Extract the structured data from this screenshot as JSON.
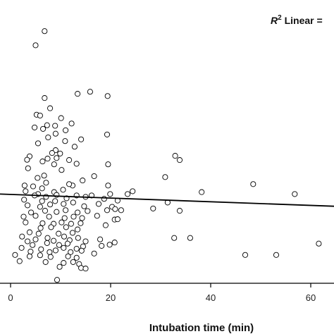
{
  "chart_data": {
    "type": "scatter",
    "xlabel": "Intubation time (min)",
    "ylabel": "",
    "annotation": {
      "r2_prefix": "R",
      "r2_sup": "2",
      "r2_rest": " Linear ="
    },
    "xlim": [
      -2,
      63
    ],
    "ylim": [
      0,
      100
    ],
    "x_ticks": [
      0,
      20,
      40,
      60
    ],
    "x_tick_labels": [
      "0",
      "20",
      "40",
      "60"
    ],
    "grid": false,
    "marker": "open-circle",
    "fit_line": {
      "x": [
        -2,
        63
      ],
      "y": [
        31.5,
        27.2
      ]
    },
    "points": [
      [
        6.8,
        89.0
      ],
      [
        5.0,
        84.0
      ],
      [
        15.9,
        67.6
      ],
      [
        13.4,
        66.9
      ],
      [
        6.8,
        65.4
      ],
      [
        19.4,
        66.1
      ],
      [
        7.9,
        61.8
      ],
      [
        5.2,
        59.5
      ],
      [
        5.9,
        59.2
      ],
      [
        10.1,
        58.3
      ],
      [
        12.2,
        56.4
      ],
      [
        7.3,
        55.8
      ],
      [
        8.9,
        55.6
      ],
      [
        4.8,
        55.0
      ],
      [
        6.5,
        54.5
      ],
      [
        11.0,
        54.0
      ],
      [
        19.3,
        52.5
      ],
      [
        9.0,
        52.8
      ],
      [
        7.5,
        51.5
      ],
      [
        14.1,
        50.8
      ],
      [
        10.9,
        50.2
      ],
      [
        5.5,
        49.4
      ],
      [
        12.8,
        48.2
      ],
      [
        9.0,
        47.0
      ],
      [
        8.3,
        46.0
      ],
      [
        3.8,
        44.8
      ],
      [
        9.9,
        45.8
      ],
      [
        11.7,
        43.5
      ],
      [
        7.4,
        44.0
      ],
      [
        6.4,
        43.0
      ],
      [
        9.2,
        44.2
      ],
      [
        3.3,
        43.6
      ],
      [
        13.2,
        42.2
      ],
      [
        8.7,
        42.0
      ],
      [
        19.5,
        42.0
      ],
      [
        32.9,
        45.0
      ],
      [
        33.8,
        43.5
      ],
      [
        3.5,
        40.6
      ],
      [
        10.2,
        40.0
      ],
      [
        16.7,
        37.8
      ],
      [
        6.7,
        38.0
      ],
      [
        30.9,
        37.5
      ],
      [
        5.4,
        37.2
      ],
      [
        14.4,
        36.3
      ],
      [
        12.4,
        34.5
      ],
      [
        11.7,
        35.0
      ],
      [
        2.8,
        34.5
      ],
      [
        4.5,
        34.2
      ],
      [
        7.1,
        35.5
      ],
      [
        19.5,
        34.5
      ],
      [
        48.5,
        35.0
      ],
      [
        6.3,
        33.5
      ],
      [
        10.5,
        33.0
      ],
      [
        8.7,
        32.2
      ],
      [
        5.5,
        31.5
      ],
      [
        3.0,
        32.5
      ],
      [
        4.8,
        31.0
      ],
      [
        7.1,
        30.5
      ],
      [
        9.2,
        31.2
      ],
      [
        11.2,
        30.0
      ],
      [
        13.2,
        31.0
      ],
      [
        15.0,
        30.5
      ],
      [
        16.2,
        31.0
      ],
      [
        19.9,
        31.5
      ],
      [
        24.4,
        32.5
      ],
      [
        23.4,
        31.5
      ],
      [
        38.2,
        32.2
      ],
      [
        56.8,
        31.5
      ],
      [
        2.7,
        29.5
      ],
      [
        6.3,
        29.0
      ],
      [
        8.9,
        29.0
      ],
      [
        12.5,
        28.5
      ],
      [
        18.7,
        29.8
      ],
      [
        21.4,
        29.2
      ],
      [
        31.4,
        28.5
      ],
      [
        3.4,
        27.5
      ],
      [
        5.9,
        27.0
      ],
      [
        7.9,
        27.8
      ],
      [
        10.6,
        28.0
      ],
      [
        14.7,
        27.2
      ],
      [
        17.6,
        28.0
      ],
      [
        20.3,
        27.0
      ],
      [
        20.9,
        26.2
      ],
      [
        28.5,
        26.4
      ],
      [
        33.8,
        25.6
      ],
      [
        4.1,
        25.0
      ],
      [
        6.9,
        25.6
      ],
      [
        9.2,
        25.2
      ],
      [
        11.0,
        25.8
      ],
      [
        13.4,
        25.0
      ],
      [
        15.4,
        25.5
      ],
      [
        19.3,
        25.8
      ],
      [
        22.1,
        25.8
      ],
      [
        2.6,
        23.5
      ],
      [
        5.0,
        23.8
      ],
      [
        7.7,
        23.5
      ],
      [
        10.8,
        23.0
      ],
      [
        12.6,
        23.5
      ],
      [
        14.3,
        23.0
      ],
      [
        17.3,
        23.8
      ],
      [
        20.8,
        22.5
      ],
      [
        21.4,
        22.6
      ],
      [
        3.0,
        21.5
      ],
      [
        6.4,
        21.2
      ],
      [
        8.6,
        21.0
      ],
      [
        10.2,
        21.5
      ],
      [
        12.1,
        21.0
      ],
      [
        14.0,
        21.2
      ],
      [
        19.0,
        20.5
      ],
      [
        6.0,
        19.5
      ],
      [
        8.1,
        19.8
      ],
      [
        11.1,
        19.8
      ],
      [
        13.4,
        19.0
      ],
      [
        3.8,
        18.0
      ],
      [
        5.6,
        17.5
      ],
      [
        9.6,
        17.5
      ],
      [
        12.4,
        17.8
      ],
      [
        2.3,
        16.5
      ],
      [
        5.0,
        15.5
      ],
      [
        7.4,
        16.0
      ],
      [
        10.7,
        16.5
      ],
      [
        13.5,
        16.0
      ],
      [
        17.9,
        15.5
      ],
      [
        3.4,
        14.8
      ],
      [
        8.6,
        15.0
      ],
      [
        11.8,
        15.2
      ],
      [
        15.0,
        14.8
      ],
      [
        32.7,
        16.0
      ],
      [
        35.9,
        16.0
      ],
      [
        4.4,
        13.5
      ],
      [
        7.3,
        14.2
      ],
      [
        9.7,
        13.5
      ],
      [
        11.4,
        14.0
      ],
      [
        14.5,
        13.0
      ],
      [
        2.2,
        12.5
      ],
      [
        6.1,
        12.0
      ],
      [
        10.6,
        12.5
      ],
      [
        13.2,
        12.2
      ],
      [
        18.2,
        13.2
      ],
      [
        19.8,
        13.6
      ],
      [
        20.8,
        14.4
      ],
      [
        61.6,
        14.0
      ],
      [
        4.0,
        11.2
      ],
      [
        7.8,
        11.0
      ],
      [
        9.0,
        11.6
      ],
      [
        12.0,
        11.0
      ],
      [
        14.2,
        11.5
      ],
      [
        16.7,
        10.5
      ],
      [
        0.9,
        10.0
      ],
      [
        3.8,
        9.5
      ],
      [
        5.9,
        9.9
      ],
      [
        8.0,
        9.3
      ],
      [
        11.5,
        9.5
      ],
      [
        13.2,
        9.0
      ],
      [
        46.9,
        10.0
      ],
      [
        53.1,
        10.0
      ],
      [
        1.8,
        7.8
      ],
      [
        7.0,
        7.5
      ],
      [
        10.6,
        7.2
      ],
      [
        12.5,
        7.5
      ],
      [
        13.7,
        6.8
      ],
      [
        14.1,
        5.4
      ],
      [
        9.8,
        5.8
      ],
      [
        15.0,
        5.2
      ],
      [
        9.3,
        1.2
      ]
    ]
  }
}
